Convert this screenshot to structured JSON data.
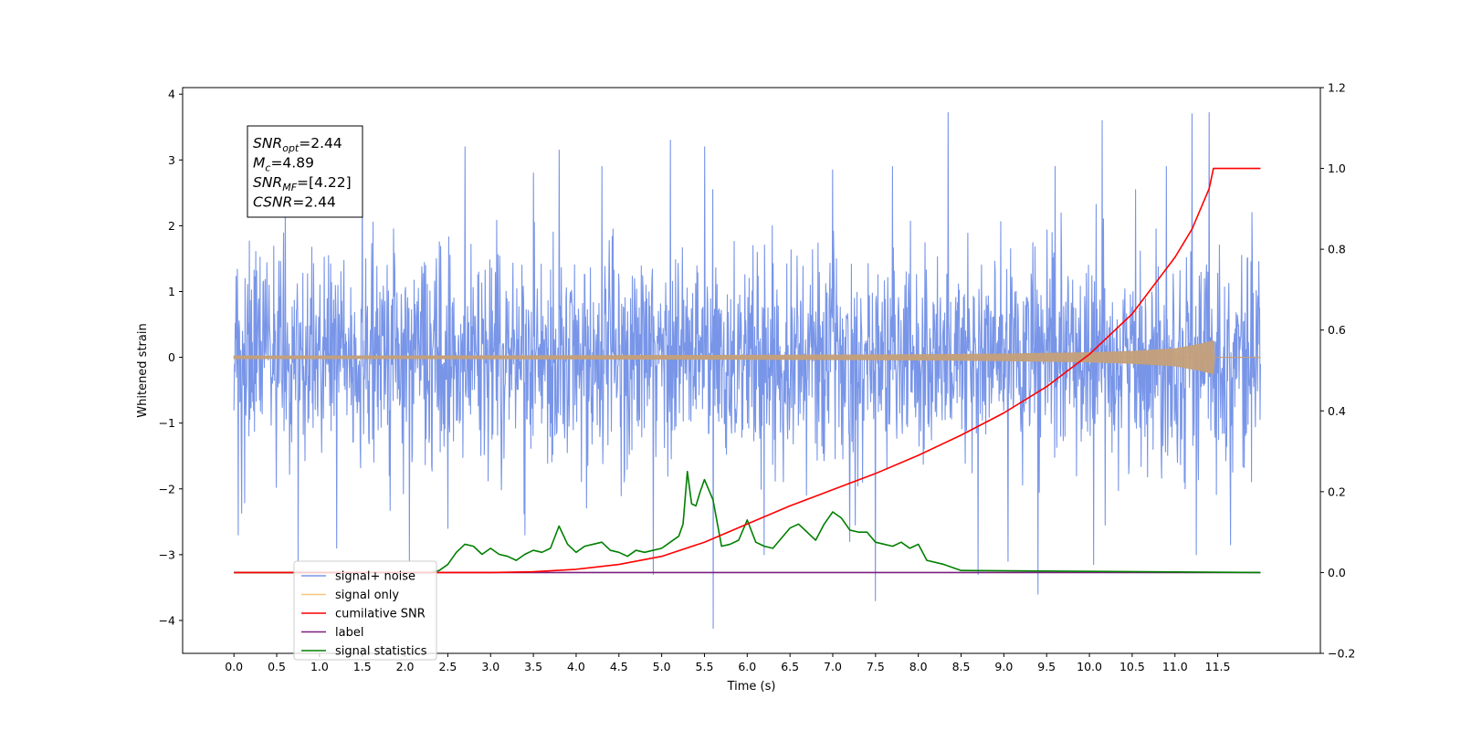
{
  "chart_data": {
    "type": "line",
    "xlabel": "Time (s)",
    "ylabel": "Whitened strain",
    "xlim": [
      -0.6,
      12.7
    ],
    "ylim_left": [
      -4.5,
      4.1
    ],
    "ylim_right": [
      -0.2,
      1.2
    ],
    "x_ticks": [
      "0.0",
      "0.5",
      "1.0",
      "1.5",
      "2.0",
      "2.5",
      "3.0",
      "3.5",
      "4.0",
      "4.5",
      "5.0",
      "5.5",
      "6.0",
      "6.5",
      "7.0",
      "7.5",
      "8.0",
      "8.5",
      "9.0",
      "9.5",
      "10.0",
      "10.5",
      "11.0",
      "11.5"
    ],
    "y_ticks_left": [
      "−4",
      "−3",
      "−2",
      "−1",
      "0",
      "1",
      "2",
      "3",
      "4"
    ],
    "y_ticks_right": [
      "−0.2",
      "0.0",
      "0.2",
      "0.4",
      "0.6",
      "0.8",
      "1.0",
      "1.2"
    ],
    "noise_envelope": {
      "x_range": [
        0.0,
        12.0
      ],
      "typical_band": [
        -1.6,
        1.6
      ],
      "peaks_up": [
        {
          "x": 0.05,
          "y": 2.25
        },
        {
          "x": 0.6,
          "y": 2.4
        },
        {
          "x": 1.5,
          "y": 2.7
        },
        {
          "x": 2.05,
          "y": 2.9
        },
        {
          "x": 2.7,
          "y": 3.2
        },
        {
          "x": 3.5,
          "y": 2.8
        },
        {
          "x": 3.8,
          "y": 3.15
        },
        {
          "x": 4.3,
          "y": 2.9
        },
        {
          "x": 5.1,
          "y": 3.3
        },
        {
          "x": 5.5,
          "y": 3.2
        },
        {
          "x": 6.2,
          "y": 2.8
        },
        {
          "x": 7.0,
          "y": 2.85
        },
        {
          "x": 7.7,
          "y": 2.9
        },
        {
          "x": 8.35,
          "y": 3.72
        },
        {
          "x": 9.6,
          "y": 2.9
        },
        {
          "x": 10.15,
          "y": 3.6
        },
        {
          "x": 10.9,
          "y": 2.9
        },
        {
          "x": 11.2,
          "y": 3.7
        },
        {
          "x": 11.4,
          "y": 3.72
        },
        {
          "x": 11.9,
          "y": 2.2
        }
      ],
      "peaks_down": [
        {
          "x": 0.05,
          "y": -2.7
        },
        {
          "x": 0.75,
          "y": -3.1
        },
        {
          "x": 1.2,
          "y": -2.9
        },
        {
          "x": 2.05,
          "y": -3.1
        },
        {
          "x": 2.5,
          "y": -2.6
        },
        {
          "x": 3.4,
          "y": -2.7
        },
        {
          "x": 4.9,
          "y": -3.3
        },
        {
          "x": 5.6,
          "y": -4.12
        },
        {
          "x": 6.2,
          "y": -3.0
        },
        {
          "x": 7.2,
          "y": -2.8
        },
        {
          "x": 7.5,
          "y": -3.7
        },
        {
          "x": 8.7,
          "y": -3.3
        },
        {
          "x": 9.05,
          "y": -3.1
        },
        {
          "x": 9.4,
          "y": -3.6
        },
        {
          "x": 10.05,
          "y": -3.15
        },
        {
          "x": 11.25,
          "y": -3.0
        },
        {
          "x": 11.65,
          "y": -2.85
        }
      ]
    },
    "series": [
      {
        "name": "signal+ noise",
        "axis": "left",
        "color": "#7895e8",
        "note": "dense white noise around 0"
      },
      {
        "name": "signal only",
        "axis": "left",
        "color": "#f5c77a",
        "amplitude_envelope": {
          "x": [
            0.0,
            2.0,
            4.0,
            6.0,
            8.0,
            9.0,
            10.0,
            10.5,
            11.0,
            11.3,
            11.45,
            11.46,
            12.0
          ],
          "y": [
            0.02,
            0.02,
            0.025,
            0.03,
            0.04,
            0.05,
            0.07,
            0.09,
            0.13,
            0.2,
            0.25,
            0.0,
            0.0
          ]
        }
      },
      {
        "name": "cumilative SNR",
        "axis": "right",
        "color": "#ff0000",
        "x": [
          0.0,
          3.0,
          3.5,
          4.0,
          4.5,
          5.0,
          5.5,
          6.0,
          6.5,
          7.0,
          7.5,
          8.0,
          8.5,
          9.0,
          9.5,
          10.0,
          10.5,
          11.0,
          11.2,
          11.4,
          11.45,
          12.0
        ],
        "y": [
          0.0,
          0.0,
          0.002,
          0.008,
          0.02,
          0.04,
          0.075,
          0.12,
          0.165,
          0.205,
          0.245,
          0.29,
          0.34,
          0.395,
          0.46,
          0.54,
          0.64,
          0.78,
          0.85,
          0.95,
          1.0,
          1.0
        ]
      },
      {
        "name": "label",
        "axis": "right",
        "color": "#7b1f7f",
        "x": [
          0.0,
          12.0
        ],
        "y": [
          0.0,
          0.0
        ]
      },
      {
        "name": "signal statistics",
        "axis": "right",
        "color": "#008000",
        "x": [
          0.0,
          2.3,
          2.4,
          2.5,
          2.6,
          2.7,
          2.8,
          2.9,
          3.0,
          3.1,
          3.2,
          3.3,
          3.4,
          3.5,
          3.6,
          3.7,
          3.8,
          3.9,
          4.0,
          4.1,
          4.2,
          4.3,
          4.4,
          4.5,
          4.6,
          4.7,
          4.8,
          4.9,
          5.0,
          5.1,
          5.2,
          5.25,
          5.3,
          5.35,
          5.4,
          5.45,
          5.5,
          5.6,
          5.7,
          5.8,
          5.9,
          6.0,
          6.1,
          6.2,
          6.3,
          6.4,
          6.5,
          6.6,
          6.7,
          6.8,
          6.9,
          7.0,
          7.1,
          7.2,
          7.3,
          7.4,
          7.5,
          7.6,
          7.7,
          7.8,
          7.9,
          8.0,
          8.1,
          8.3,
          8.5,
          12.0
        ],
        "y": [
          0.0,
          0.0,
          0.005,
          0.02,
          0.05,
          0.07,
          0.065,
          0.045,
          0.06,
          0.045,
          0.04,
          0.03,
          0.045,
          0.055,
          0.05,
          0.06,
          0.115,
          0.07,
          0.05,
          0.065,
          0.07,
          0.075,
          0.055,
          0.05,
          0.04,
          0.055,
          0.05,
          0.055,
          0.06,
          0.075,
          0.09,
          0.12,
          0.25,
          0.17,
          0.165,
          0.2,
          0.23,
          0.18,
          0.065,
          0.07,
          0.08,
          0.13,
          0.075,
          0.065,
          0.06,
          0.085,
          0.11,
          0.12,
          0.1,
          0.08,
          0.12,
          0.15,
          0.135,
          0.105,
          0.1,
          0.1,
          0.075,
          0.07,
          0.065,
          0.075,
          0.06,
          0.07,
          0.03,
          0.02,
          0.005,
          0.0
        ]
      }
    ],
    "legend": {
      "placement": "lower-left",
      "entries": [
        {
          "label": "signal+ noise",
          "color": "#7895e8"
        },
        {
          "label": "signal only",
          "color": "#f5c77a"
        },
        {
          "label": "cumilative SNR",
          "color": "#ff0000"
        },
        {
          "label": "label",
          "color": "#7b1f7f"
        },
        {
          "label": "signal statistics",
          "color": "#008000"
        }
      ]
    },
    "annotation": {
      "lines": [
        {
          "main": "SNR",
          "sub": "opt",
          "rest": "=2.44"
        },
        {
          "main": "M",
          "sub": "c",
          "rest": "=4.89"
        },
        {
          "main": "SNR",
          "sub": "MF",
          "rest": "=[4.22]"
        },
        {
          "main": "CSNR",
          "sub": "",
          "rest": "=2.44"
        }
      ]
    }
  }
}
